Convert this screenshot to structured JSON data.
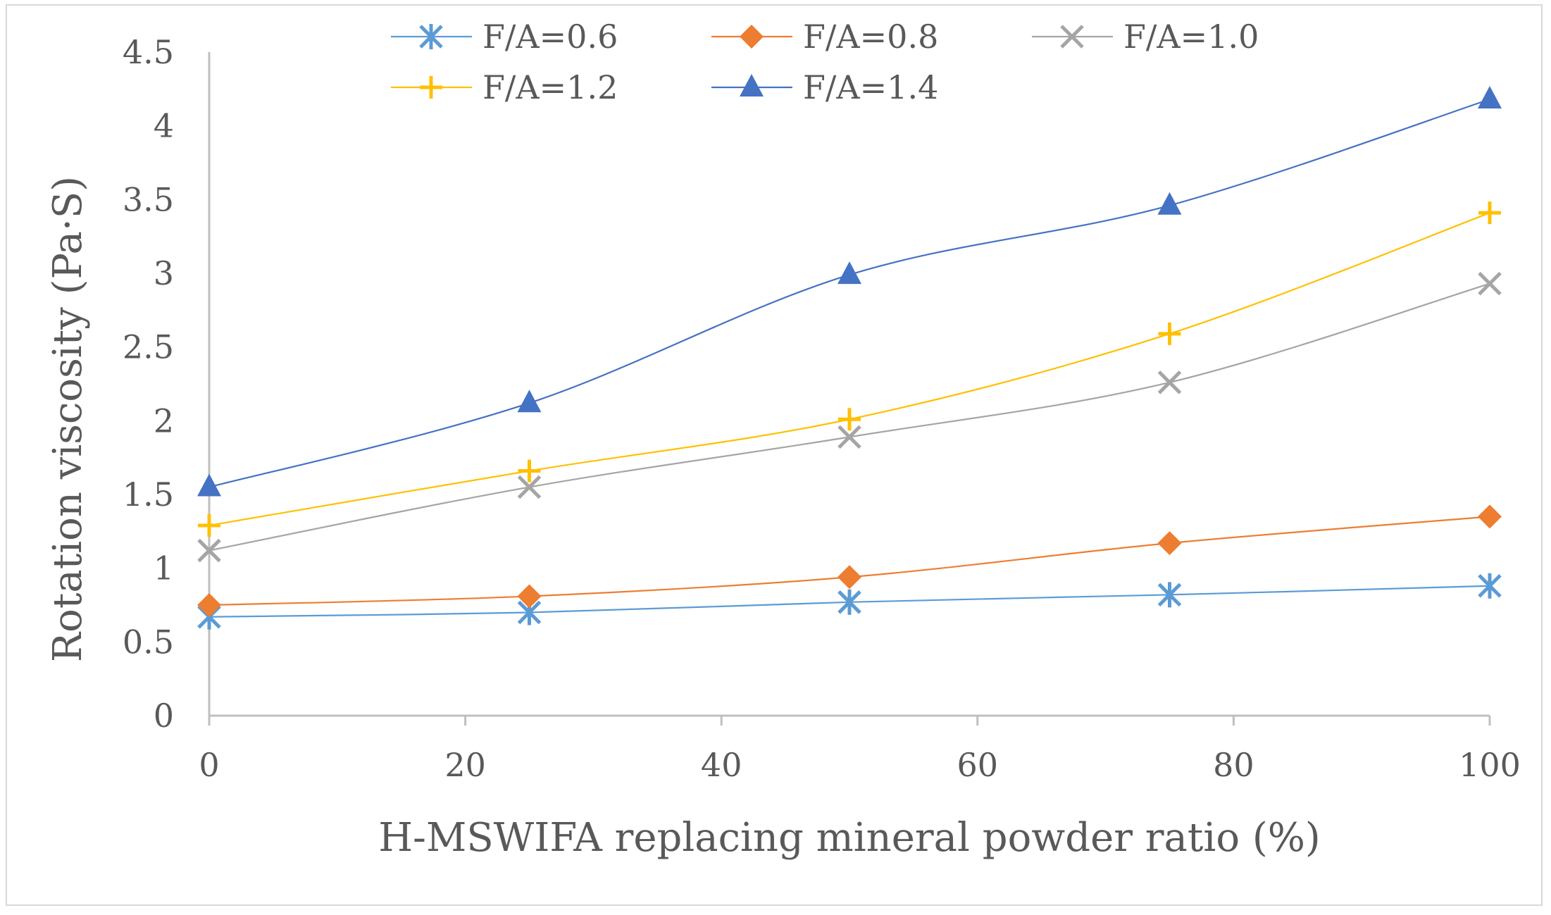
{
  "chart_data": {
    "type": "line",
    "title": "",
    "xlabel": "H-MSWIFA replacing mineral powder ratio (%)",
    "ylabel": "Rotation viscosity (Pa·S)",
    "xlim": [
      0,
      100
    ],
    "ylim": [
      0,
      4.5
    ],
    "xticks": [
      0,
      20,
      40,
      60,
      80,
      100
    ],
    "yticks": [
      0,
      0.5,
      1,
      1.5,
      2,
      2.5,
      3,
      3.5,
      4,
      4.5
    ],
    "xtick_labels": [
      "0",
      "20",
      "40",
      "60",
      "80",
      "100"
    ],
    "ytick_labels": [
      "0",
      "0.5",
      "1",
      "1.5",
      "2",
      "2.5",
      "3",
      "3.5",
      "4",
      "4.5"
    ],
    "grid": false,
    "legend_position": "top",
    "x": [
      0,
      25,
      50,
      75,
      100
    ],
    "series": [
      {
        "name": "F/A=0.6",
        "marker": "asterisk",
        "color": "#5B9BD5",
        "values": [
          0.67,
          0.7,
          0.77,
          0.82,
          0.88
        ]
      },
      {
        "name": "F/A=0.8",
        "marker": "diamond",
        "color": "#ED7D31",
        "values": [
          0.75,
          0.81,
          0.94,
          1.17,
          1.35
        ]
      },
      {
        "name": "F/A=1.0",
        "marker": "x",
        "color": "#A5A5A5",
        "values": [
          1.12,
          1.55,
          1.89,
          2.26,
          2.93
        ]
      },
      {
        "name": "F/A=1.2",
        "marker": "plus",
        "color": "#FFC000",
        "values": [
          1.29,
          1.66,
          2.01,
          2.59,
          3.41
        ]
      },
      {
        "name": "F/A=1.4",
        "marker": "triangle",
        "color": "#4472C4",
        "values": [
          1.55,
          2.12,
          2.99,
          3.46,
          4.18
        ]
      }
    ]
  }
}
